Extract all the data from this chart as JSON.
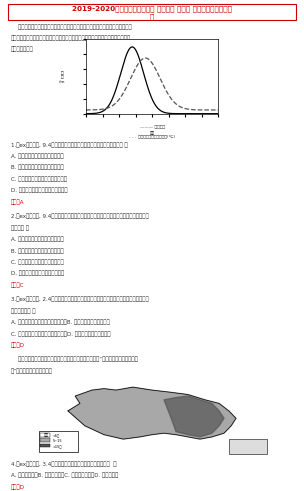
{
  "title_line1": "2019-2020年高考地理真题汇编 第三单元 第一节 冷热不均引起大气运",
  "title_line2": "动",
  "title_color": "#cc0000",
  "bg_color": "#ffffff",
  "text_color": "#333333",
  "intro_lines": [
    "    逆温是一定条件下近地面气温随海拔上升有升高的现象。某较气象站通过在不同",
    "下布设观测站对逆温进行连续观测。下图为各个探测站料的近线对穿化平均的结果。",
    "完成下面两题。"
  ],
  "graph_caption1": "——— 逆温层厚",
  "graph_caption2": "- - - 逆温上界点上层上升气温(℃)",
  "q1_lines": [
    "1.（ex浙江文理, 9.4分）下列关于逆地逆温特征的描述，正确的是（　 ）",
    "A. 逆温层控近地面积大，向上逐个",
    "B. 逆温层厚午夜达较最大，后逐淡",
    "C. 逆温层量日落前比现，日出前消失",
    "D. 弱逆温平夜候地场，后平夜降逐快"
  ],
  "q1ans": "答案：A",
  "q2_lines": [
    "2.（ex浙江文理, 9.4分）逆温建温度上早畔度在时向上部份于覆建逆层上界畔前的主要原",
    "因是（　 ）",
    "A. 大气吸域逆前辐射存在日夜差异",
    "B. 大气扩射反应在地生上日差差异",
    "C. 空气上下热量传递存在时间差异",
    "D. 下坠面披带平在时向上承气差异"
  ],
  "q2ans": "答案：C",
  "q3_lines": [
    "3.（ex广东文理, 2.4分）大规模的火山爆发可能逆逆遮盖温度下降，其合理的射和是火山",
    "爆发导致（　 ）",
    "A. 大气二氧化碳浓度增强　　　　　B. 高际定地区域光照量减少",
    "C. 地球反射长波辐射增强　　　　　D. 到达地面的形成辐射成员"
  ],
  "q3ans": "答案：D",
  "map_intro_lines": [
    "    霾粒溶浮在近地层空气中的大量微小水接晶冰品。下图为“中国年平均霾日空间分布",
    "图”，据材料回答下面两题。"
  ],
  "q4_lines": [
    "4.（ex广东定选, 3.4分）下列地区中，年平均霾日最少的（　  ）",
    "A. 精准近郊　　B. 黄海沿岸　　C. 辽阔平坦地　　D. 整达木流地"
  ],
  "q4ans": "答案：D"
}
